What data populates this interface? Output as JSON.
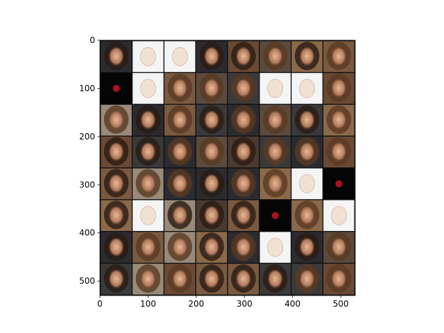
{
  "chart_data": {
    "type": "image",
    "xlim": [
      0,
      530
    ],
    "ylim": [
      530,
      0
    ],
    "xticks": [
      0,
      100,
      200,
      300,
      400,
      500
    ],
    "yticks": [
      0,
      100,
      200,
      300,
      400,
      500
    ]
  }
}
